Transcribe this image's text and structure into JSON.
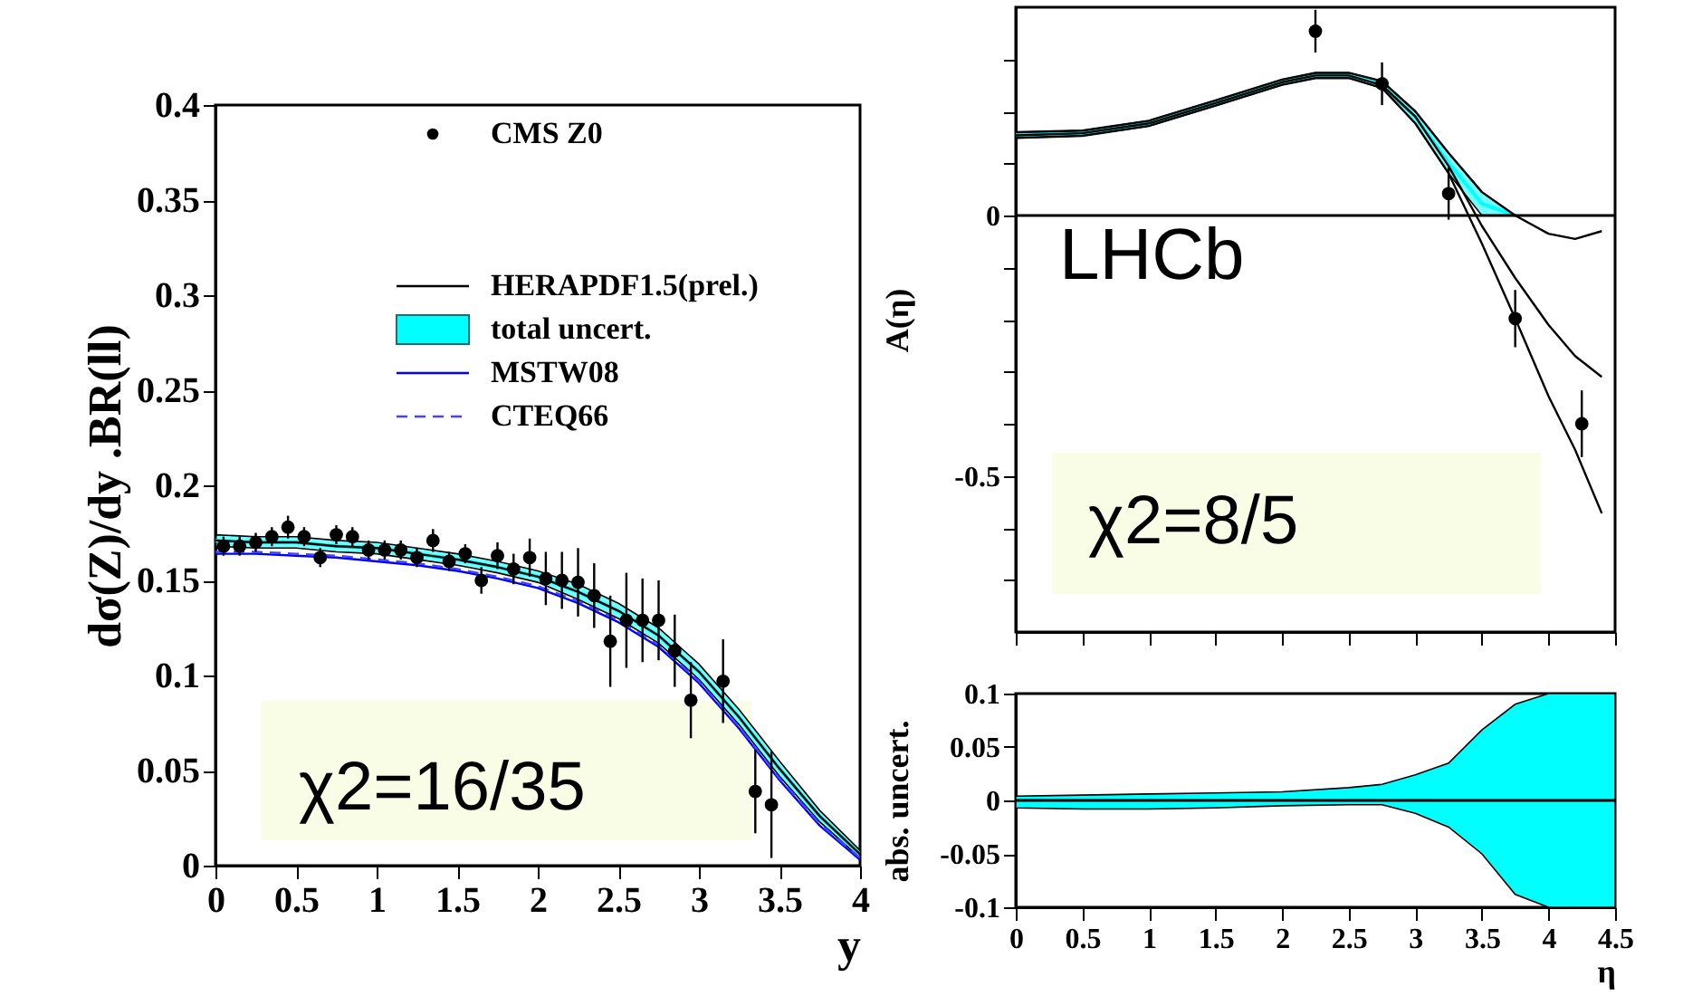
{
  "chart_data": [
    {
      "type": "line",
      "xlabel": "y",
      "ylabel": "dσ(Z)/dy .BR(ll)",
      "xlim": [
        0,
        4
      ],
      "xticks": [
        0,
        0.5,
        1,
        1.5,
        2,
        2.5,
        3,
        3.5,
        4
      ],
      "ylim": [
        0,
        0.4
      ],
      "yticks": [
        0,
        0.05,
        0.1,
        0.15,
        0.2,
        0.25,
        0.3,
        0.35,
        0.4
      ],
      "legend": "top right",
      "annotations": [
        "χ2=16/35"
      ],
      "series": [
        {
          "name": "CMS Z0",
          "type": "scatter",
          "marker": "circle",
          "color": "#000000",
          "x": [
            0.05,
            0.15,
            0.25,
            0.35,
            0.45,
            0.55,
            0.65,
            0.75,
            0.85,
            0.95,
            1.05,
            1.15,
            1.25,
            1.35,
            1.45,
            1.55,
            1.65,
            1.75,
            1.85,
            1.95,
            2.05,
            2.15,
            2.25,
            2.35,
            2.45,
            2.55,
            2.65,
            2.75,
            2.85,
            2.95,
            3.05,
            3.15,
            3.25,
            3.35,
            3.45
          ],
          "values": [
            0.168,
            0.168,
            0.17,
            0.173,
            0.178,
            0.173,
            0.162,
            0.174,
            0.173,
            0.166,
            0.166,
            0.166,
            0.162,
            0.171,
            0.16,
            0.164,
            0.15,
            0.163,
            0.156,
            0.162,
            0.151,
            0.15,
            0.149,
            0.142,
            0.118,
            0.129,
            0.129,
            0.129,
            0.113,
            0.087,
            null,
            0.097,
            null,
            0.039,
            0.032
          ],
          "errors": [
            0.005,
            0.005,
            0.005,
            0.005,
            0.006,
            0.005,
            0.005,
            0.005,
            0.005,
            0.005,
            0.005,
            0.005,
            0.005,
            0.006,
            0.005,
            0.005,
            0.007,
            0.007,
            0.008,
            0.01,
            0.014,
            0.015,
            0.018,
            0.017,
            0.024,
            0.025,
            0.022,
            0.021,
            0.019,
            0.02,
            null,
            0.022,
            null,
            0.022,
            0.028
          ]
        },
        {
          "name": "HERAPDF1.5(prel.)",
          "color": "#000000",
          "x": [
            0,
            0.25,
            0.5,
            0.75,
            1,
            1.25,
            1.5,
            1.75,
            2,
            2.25,
            2.5,
            2.75,
            3,
            3.25,
            3.5,
            3.75,
            4
          ],
          "values": [
            0.171,
            0.17,
            0.17,
            0.168,
            0.167,
            0.164,
            0.161,
            0.157,
            0.152,
            0.144,
            0.134,
            0.121,
            0.102,
            0.078,
            0.051,
            0.026,
            0.006
          ]
        },
        {
          "name": "total uncert.",
          "color": "#00ffff",
          "x": [
            0,
            0.25,
            0.5,
            0.75,
            1,
            1.25,
            1.5,
            1.75,
            2,
            2.25,
            2.5,
            2.75,
            3,
            3.25,
            3.5,
            3.75,
            4
          ],
          "values": [
            0.171,
            0.17,
            0.17,
            0.168,
            0.167,
            0.164,
            0.161,
            0.157,
            0.152,
            0.144,
            0.134,
            0.121,
            0.102,
            0.078,
            0.051,
            0.026,
            0.006
          ],
          "lower": [
            0.168,
            0.167,
            0.167,
            0.165,
            0.164,
            0.161,
            0.158,
            0.154,
            0.149,
            0.14,
            0.13,
            0.117,
            0.098,
            0.074,
            0.047,
            0.023,
            0.004
          ],
          "upper": [
            0.174,
            0.173,
            0.173,
            0.171,
            0.17,
            0.167,
            0.164,
            0.16,
            0.155,
            0.148,
            0.138,
            0.125,
            0.106,
            0.082,
            0.055,
            0.029,
            0.008
          ]
        },
        {
          "name": "MSTW08",
          "color": "#0000ff",
          "x": [
            0,
            0.25,
            0.5,
            0.75,
            1,
            1.25,
            1.5,
            1.75,
            2,
            2.25,
            2.5,
            2.75,
            3,
            3.25,
            3.5,
            3.75,
            4
          ],
          "values": [
            0.164,
            0.164,
            0.163,
            0.162,
            0.16,
            0.158,
            0.155,
            0.151,
            0.146,
            0.138,
            0.128,
            0.115,
            0.096,
            0.072,
            0.045,
            0.021,
            0.003
          ]
        },
        {
          "name": "CTEQ66",
          "line_style": "dashed",
          "color": "#4444ff",
          "x": [
            0,
            0.25,
            0.5,
            0.75,
            1,
            1.25,
            1.5,
            1.75,
            2,
            2.25,
            2.5,
            2.75,
            3,
            3.25,
            3.5,
            3.75,
            4
          ],
          "values": [
            0.165,
            0.165,
            0.164,
            0.163,
            0.161,
            0.159,
            0.156,
            0.152,
            0.147,
            0.139,
            0.129,
            0.116,
            0.097,
            0.073,
            0.046,
            0.022,
            0.004
          ]
        }
      ]
    },
    {
      "type": "line",
      "ylabel": "A(η)",
      "xlim": [
        0,
        4.5
      ],
      "xticks": [
        0,
        0.5,
        1,
        1.5,
        2,
        2.5,
        3,
        3.5,
        4,
        4.5
      ],
      "ylim": [
        -0.8,
        0.4
      ],
      "yticks": [
        {
          "value": -0.7,
          "label": null
        },
        {
          "value": -0.6,
          "label": null
        },
        -0.5,
        {
          "value": -0.4,
          "label": null
        },
        {
          "value": -0.3,
          "label": null
        },
        {
          "value": -0.2,
          "label": null
        },
        {
          "value": -0.1,
          "label": null
        },
        0,
        {
          "value": 0.1,
          "label": null
        },
        {
          "value": 0.2,
          "label": null
        },
        {
          "value": 0.3,
          "label": null
        }
      ],
      "tick_labels": "y",
      "annotations": [
        "LHCb",
        "χ2=8/5"
      ],
      "ref_lines": [
        {
          "axis": "y",
          "value": 0,
          "color": "#000000"
        }
      ],
      "series": [
        {
          "color": "#00ffff",
          "x": [
            0,
            0.5,
            1,
            1.5,
            2,
            2.25,
            2.5,
            2.75,
            3,
            3.25,
            3.5,
            3.75
          ],
          "values": [
            0.155,
            0.158,
            0.177,
            0.216,
            0.256,
            0.269,
            0.269,
            0.252,
            0.189,
            0.101,
            0.023,
            0
          ],
          "lower": [
            0.149,
            0.153,
            0.172,
            0.211,
            0.251,
            0.264,
            0.264,
            0.245,
            0.177,
            0.081,
            0,
            0
          ],
          "upper": [
            0.16,
            0.163,
            0.182,
            0.221,
            0.261,
            0.274,
            0.274,
            0.258,
            0.2,
            0.12,
            0.045,
            0
          ]
        },
        {
          "color": "#000000",
          "x": [
            0,
            0.5,
            1,
            1.5,
            2,
            2.25,
            2.5,
            2.75,
            3,
            3.25,
            3.5,
            3.75,
            4,
            4.2,
            4.4
          ],
          "values": [
            0.16,
            0.163,
            0.182,
            0.221,
            0.261,
            0.274,
            0.274,
            0.258,
            0.2,
            0.12,
            0.045,
            0,
            -0.035,
            -0.045,
            -0.03
          ]
        },
        {
          "color": "#000000",
          "x": [
            0,
            0.5,
            1,
            1.5,
            2,
            2.25,
            2.5,
            2.75,
            3,
            3.25,
            3.5,
            3.75,
            4,
            4.2,
            4.4
          ],
          "values": [
            0.154,
            0.158,
            0.177,
            0.216,
            0.256,
            0.269,
            0.269,
            0.25,
            0.19,
            0.095,
            -0.02,
            -0.12,
            -0.21,
            -0.27,
            -0.31
          ]
        },
        {
          "color": "#000000",
          "x": [
            0,
            0.5,
            1,
            1.5,
            2,
            2.25,
            2.5,
            2.75,
            3,
            3.25,
            3.5,
            3.75,
            4,
            4.2,
            4.4
          ],
          "values": [
            0.149,
            0.153,
            0.172,
            0.211,
            0.251,
            0.264,
            0.264,
            0.245,
            0.177,
            0.081,
            -0.054,
            -0.198,
            -0.347,
            -0.45,
            -0.572
          ]
        },
        {
          "type": "scatter",
          "marker": "circle",
          "color": "#000000",
          "x": [
            2.25,
            2.75,
            3.25,
            3.75,
            4.25
          ],
          "values": [
            0.354,
            0.253,
            0.042,
            -0.198,
            -0.4
          ],
          "errors": [
            0.041,
            0.041,
            0.05,
            0.055,
            0.064
          ]
        }
      ]
    },
    {
      "type": "area",
      "xlabel": "η",
      "ylabel": "abs. uncert.",
      "xlim": [
        0,
        4.5
      ],
      "xticks": [
        0,
        0.5,
        1,
        1.5,
        2,
        2.5,
        3,
        3.5,
        4,
        4.5
      ],
      "ylim": [
        -0.1,
        0.1
      ],
      "yticks": [
        -0.1,
        -0.05,
        0,
        0.05,
        0.1
      ],
      "ref_lines": [
        {
          "axis": "y",
          "value": 0,
          "color": "#000000"
        }
      ],
      "series": [
        {
          "color": "#00ffff",
          "x": [
            0,
            0.5,
            1,
            1.5,
            2,
            2.5,
            2.75,
            3,
            3.25,
            3.5,
            3.75,
            4,
            4.5
          ],
          "values": [
            -0.007,
            -0.008,
            -0.008,
            -0.007,
            -0.005,
            -0.004,
            -0.004,
            -0.012,
            -0.025,
            -0.05,
            -0.088,
            -0.1,
            -0.1
          ]
        },
        {
          "color": "#00ffff",
          "x": [
            0,
            0.5,
            1,
            1.5,
            2,
            2.5,
            2.75,
            3,
            3.25,
            3.5,
            3.75,
            4,
            4.5
          ],
          "values": [
            0.004,
            0.005,
            0.006,
            0.007,
            0.008,
            0.012,
            0.015,
            0.024,
            0.035,
            0.066,
            0.09,
            0.1,
            0.1
          ]
        }
      ]
    }
  ]
}
